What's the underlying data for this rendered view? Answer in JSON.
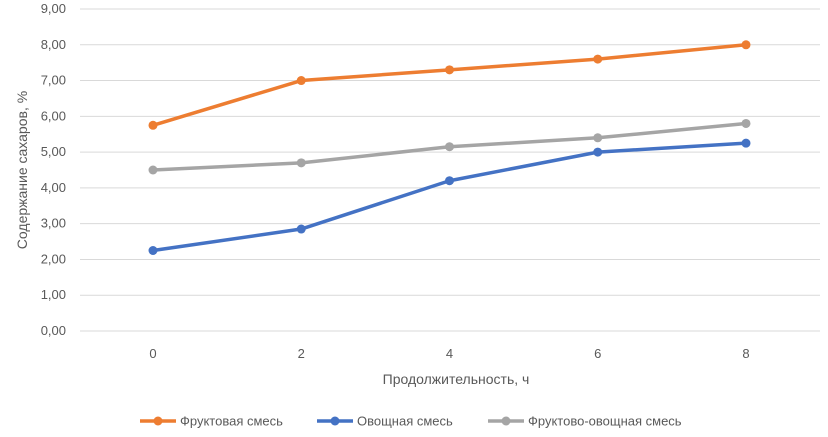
{
  "chart_data": {
    "type": "line",
    "xlabel": "Продолжительность, ч",
    "ylabel": "Содержание сахаров, %",
    "x": [
      0,
      2,
      4,
      6,
      8
    ],
    "x_tick_labels": [
      "0",
      "2",
      "4",
      "6",
      "8"
    ],
    "ylim": [
      0,
      9
    ],
    "y_ticks": [
      0,
      1,
      2,
      3,
      4,
      5,
      6,
      7,
      8,
      9
    ],
    "y_tick_labels": [
      "0,00",
      "1,00",
      "2,00",
      "3,00",
      "4,00",
      "5,00",
      "6,00",
      "7,00",
      "8,00",
      "9,00"
    ],
    "grid": "horizontal",
    "legend_position": "bottom",
    "series": [
      {
        "name": "Фруктовая смесь",
        "color": "#ED7D31",
        "values": [
          5.75,
          7.0,
          7.3,
          7.6,
          8.0
        ]
      },
      {
        "name": "Овощная смесь",
        "color": "#4472C4",
        "values": [
          2.25,
          2.85,
          4.2,
          5.0,
          5.25
        ]
      },
      {
        "name": "Фруктово-овощная смесь",
        "color": "#A5A5A5",
        "values": [
          4.5,
          4.7,
          5.15,
          5.4,
          5.8
        ]
      }
    ]
  }
}
